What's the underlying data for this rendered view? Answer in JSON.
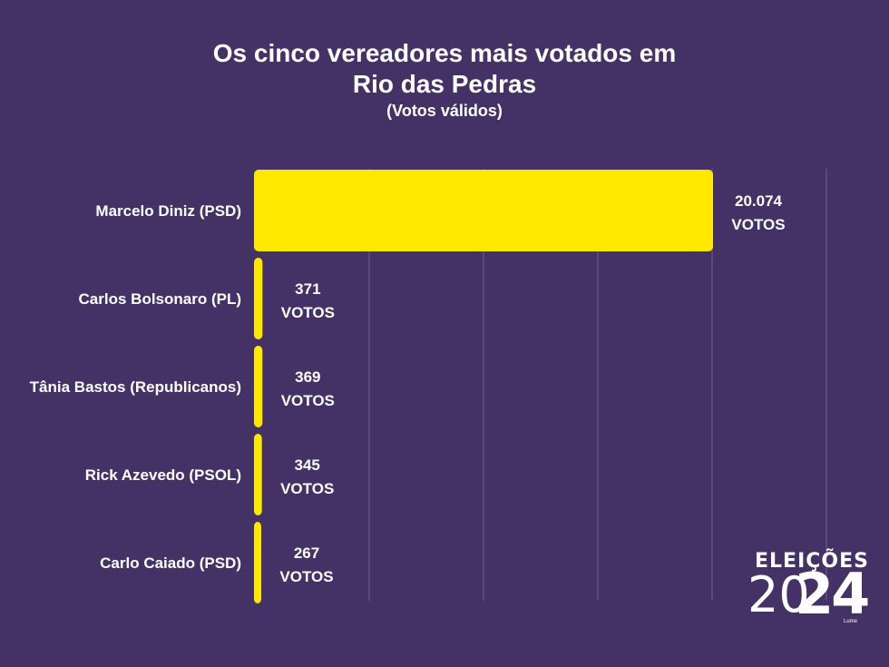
{
  "header": {
    "title_line1": "Os cinco vereadores mais votados em",
    "title_line2": "Rio das Pedras",
    "subtitle": "(Votos válidos)"
  },
  "chart_data": {
    "type": "bar",
    "orientation": "horizontal",
    "title": "Os cinco vereadores mais votados em Rio das Pedras",
    "subtitle": "(Votos válidos)",
    "categories": [
      "Marcelo Diniz (PSD)",
      "Carlos Bolsonaro (PL)",
      "Tânia Bastos (Republicanos)",
      "Rick Azevedo (PSOL)",
      "Carlo Caiado (PSD)"
    ],
    "values": [
      20074,
      371,
      369,
      345,
      267
    ],
    "value_labels": [
      "20.074",
      "371",
      "369",
      "345",
      "267"
    ],
    "unit_label": "VOTOS",
    "xlim": [
      0,
      25000
    ],
    "grid": true,
    "bar_color": "#ffe800"
  },
  "logo": {
    "line1": "ELEIÇÕES",
    "year_left": "20",
    "year_right": "24",
    "small": "Lume"
  },
  "colors": {
    "background": "#443266",
    "bar": "#ffe800",
    "text": "#ffffff",
    "grid": "#6a5b88"
  }
}
